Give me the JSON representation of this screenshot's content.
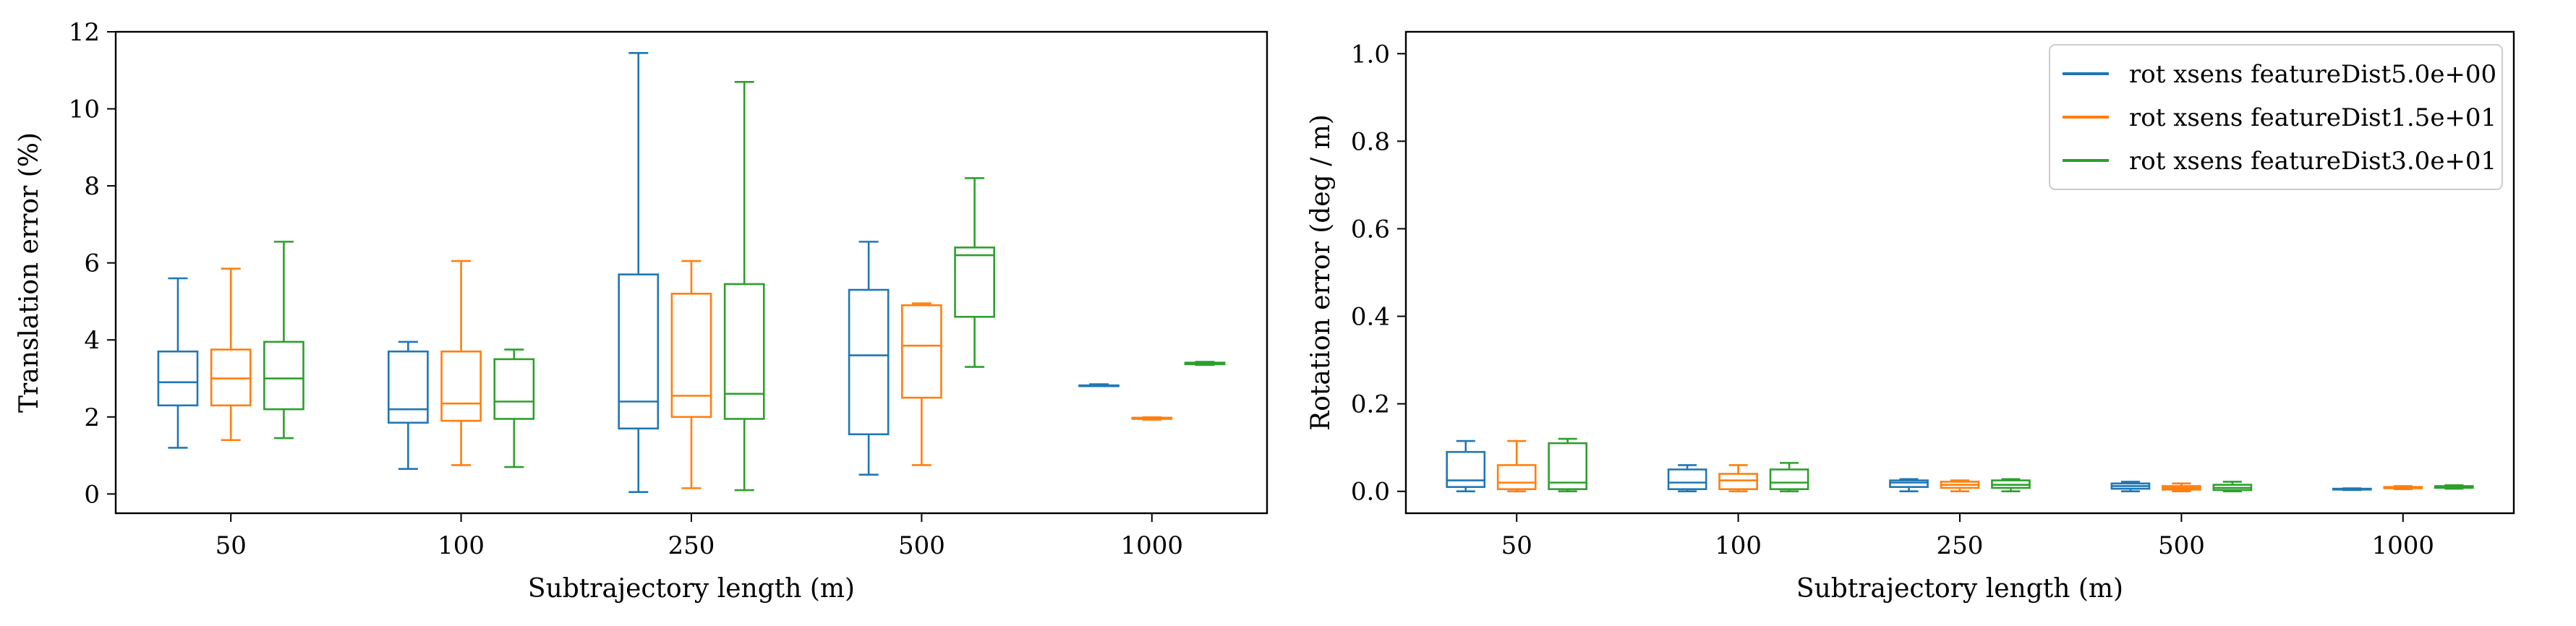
{
  "chart_data": [
    {
      "type": "box",
      "xlabel": "Subtrajectory length (m)",
      "ylabel": "Translation error (%)",
      "ylim": [
        -0.5,
        12
      ],
      "yticks": [
        0,
        2,
        4,
        6,
        8,
        10,
        12
      ],
      "categories": [
        "50",
        "100",
        "250",
        "500",
        "1000"
      ],
      "grid": false,
      "series": [
        {
          "name": "rot xsens featureDist5.0e+00",
          "color": "#1f77b4",
          "boxes": [
            {
              "min": 1.2,
              "q1": 2.3,
              "median": 2.9,
              "q3": 3.7,
              "max": 5.6
            },
            {
              "min": 0.65,
              "q1": 1.85,
              "median": 2.2,
              "q3": 3.7,
              "max": 3.95
            },
            {
              "min": 0.05,
              "q1": 1.7,
              "median": 2.4,
              "q3": 5.7,
              "max": 11.45
            },
            {
              "min": 0.5,
              "q1": 1.55,
              "median": 3.6,
              "q3": 5.3,
              "max": 6.55
            },
            {
              "min": 2.8,
              "q1": 2.8,
              "median": 2.8,
              "q3": 2.82,
              "max": 2.85
            }
          ]
        },
        {
          "name": "rot xsens featureDist1.5e+01",
          "color": "#ff7f0e",
          "boxes": [
            {
              "min": 1.4,
              "q1": 2.3,
              "median": 3.0,
              "q3": 3.75,
              "max": 5.85
            },
            {
              "min": 0.75,
              "q1": 1.9,
              "median": 2.35,
              "q3": 3.7,
              "max": 6.05
            },
            {
              "min": 0.15,
              "q1": 2.0,
              "median": 2.55,
              "q3": 5.2,
              "max": 6.05
            },
            {
              "min": 0.75,
              "q1": 2.5,
              "median": 3.85,
              "q3": 4.9,
              "max": 4.95
            },
            {
              "min": 1.93,
              "q1": 1.95,
              "median": 1.96,
              "q3": 1.98,
              "max": 1.99
            }
          ]
        },
        {
          "name": "rot xsens featureDist3.0e+01",
          "color": "#2ca02c",
          "boxes": [
            {
              "min": 1.45,
              "q1": 2.2,
              "median": 3.0,
              "q3": 3.95,
              "max": 6.55
            },
            {
              "min": 0.7,
              "q1": 1.95,
              "median": 2.4,
              "q3": 3.5,
              "max": 3.75
            },
            {
              "min": 0.1,
              "q1": 1.95,
              "median": 2.6,
              "q3": 5.45,
              "max": 10.7
            },
            {
              "min": 3.3,
              "q1": 4.6,
              "median": 6.2,
              "q3": 6.4,
              "max": 8.2
            },
            {
              "min": 3.35,
              "q1": 3.37,
              "median": 3.39,
              "q3": 3.41,
              "max": 3.43
            }
          ]
        }
      ]
    },
    {
      "type": "box",
      "xlabel": "Subtrajectory length (m)",
      "ylabel": "Rotation error (deg / m)",
      "ylim": [
        -0.05,
        1.05
      ],
      "yticks": [
        "0.0",
        "0.2",
        "0.4",
        "0.6",
        "0.8",
        "1.0"
      ],
      "categories": [
        "50",
        "100",
        "250",
        "500",
        "1000"
      ],
      "grid": false,
      "legend": "top-right",
      "series": [
        {
          "name": "rot xsens featureDist5.0e+00",
          "color": "#1f77b4",
          "boxes": [
            {
              "min": 0.0,
              "q1": 0.01,
              "median": 0.025,
              "q3": 0.09,
              "max": 0.115
            },
            {
              "min": 0.0,
              "q1": 0.005,
              "median": 0.02,
              "q3": 0.05,
              "max": 0.06
            },
            {
              "min": 0.0,
              "q1": 0.01,
              "median": 0.02,
              "q3": 0.025,
              "max": 0.028
            },
            {
              "min": 0.0,
              "q1": 0.006,
              "median": 0.012,
              "q3": 0.018,
              "max": 0.022
            },
            {
              "min": 0.003,
              "q1": 0.004,
              "median": 0.005,
              "q3": 0.006,
              "max": 0.007
            }
          ]
        },
        {
          "name": "rot xsens featureDist1.5e+01",
          "color": "#ff7f0e",
          "boxes": [
            {
              "min": 0.0,
              "q1": 0.005,
              "median": 0.02,
              "q3": 0.06,
              "max": 0.115
            },
            {
              "min": 0.0,
              "q1": 0.005,
              "median": 0.025,
              "q3": 0.04,
              "max": 0.06
            },
            {
              "min": 0.0,
              "q1": 0.008,
              "median": 0.015,
              "q3": 0.022,
              "max": 0.025
            },
            {
              "min": 0.0,
              "q1": 0.004,
              "median": 0.008,
              "q3": 0.012,
              "max": 0.018
            },
            {
              "min": 0.005,
              "q1": 0.007,
              "median": 0.008,
              "q3": 0.01,
              "max": 0.012
            }
          ]
        },
        {
          "name": "rot xsens featureDist3.0e+01",
          "color": "#2ca02c",
          "boxes": [
            {
              "min": 0.0,
              "q1": 0.005,
              "median": 0.02,
              "q3": 0.11,
              "max": 0.12
            },
            {
              "min": 0.0,
              "q1": 0.005,
              "median": 0.02,
              "q3": 0.05,
              "max": 0.065
            },
            {
              "min": 0.0,
              "q1": 0.008,
              "median": 0.015,
              "q3": 0.025,
              "max": 0.028
            },
            {
              "min": 0.0,
              "q1": 0.003,
              "median": 0.008,
              "q3": 0.015,
              "max": 0.022
            },
            {
              "min": 0.006,
              "q1": 0.008,
              "median": 0.01,
              "q3": 0.012,
              "max": 0.014
            }
          ]
        }
      ]
    }
  ]
}
